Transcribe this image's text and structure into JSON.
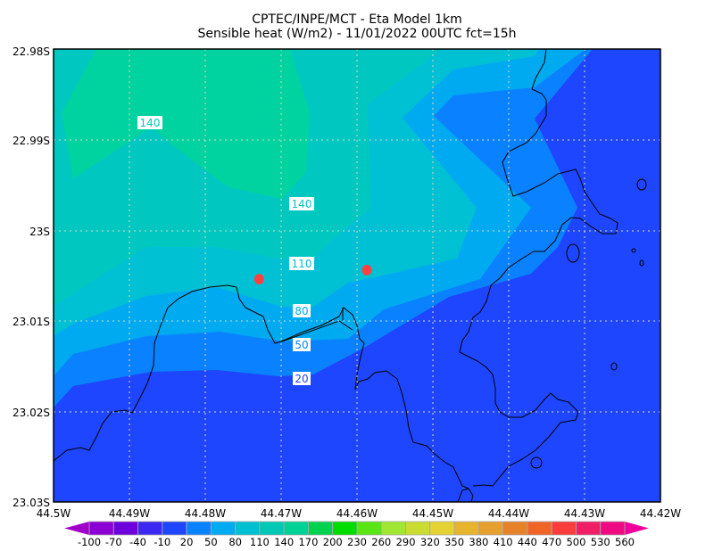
{
  "title": {
    "line1": "CPTEC/INPE/MCT -  Eta Model 1km",
    "line2": "Sensible heat (W/m2) - 11/01/2022 00UTC fct=15h"
  },
  "map": {
    "lon_range": [
      -44.5,
      -44.42
    ],
    "lat_range": [
      -23.03,
      -22.98
    ],
    "y_tick_labels": [
      "22.98S",
      "22.99S",
      "23S",
      "23.01S",
      "23.02S",
      "23.03S"
    ],
    "x_tick_labels": [
      "44.5W",
      "44.49W",
      "44.48W",
      "44.47W",
      "44.46W",
      "44.45W",
      "44.44W",
      "44.43W",
      "44.42W"
    ],
    "grid": "dashed",
    "fill_colors": {
      "below_20": "#1e46ff",
      "20_50": "#0a82ff",
      "50_80": "#00aaf0",
      "80_110": "#00c0d4",
      "110_140": "#00c8c0",
      "above_140": "#00d2a0"
    },
    "contour_labels": [
      {
        "text": "140",
        "color": "#00c8c0"
      },
      {
        "text": "140",
        "color": "#00c8c0"
      },
      {
        "text": "110",
        "color": "#00c0d4"
      },
      {
        "text": "80",
        "color": "#00aaf0"
      },
      {
        "text": "50",
        "color": "#0a82ff"
      },
      {
        "text": "20",
        "color": "#1e46ff"
      }
    ],
    "markers": [
      {
        "lon": -44.4729,
        "lat": -23.0054,
        "color": "#ff4040"
      },
      {
        "lon": -44.4587,
        "lat": -23.0044,
        "color": "#ff4040"
      }
    ],
    "coastline_color": "#000000"
  },
  "colorbar": {
    "labels": [
      "-100",
      "-70",
      "-40",
      "-10",
      "20",
      "50",
      "80",
      "110",
      "140",
      "170",
      "200",
      "230",
      "260",
      "290",
      "320",
      "350",
      "380",
      "410",
      "440",
      "470",
      "500",
      "530",
      "560"
    ],
    "colors": [
      "#8c00d4",
      "#6e00dc",
      "#3c28f0",
      "#1e46ff",
      "#0a82ff",
      "#00aaf0",
      "#00c0d2",
      "#00c8b4",
      "#00d296",
      "#00d250",
      "#00dc00",
      "#5ae614",
      "#a0e632",
      "#c8dc32",
      "#e6d232",
      "#e6b42d",
      "#e6a02d",
      "#e68228",
      "#f06428",
      "#fa3c3c",
      "#f01e64",
      "#f00a82"
    ],
    "low_arrow_color": "#a000c8",
    "high_arrow_color": "#f0009a"
  }
}
